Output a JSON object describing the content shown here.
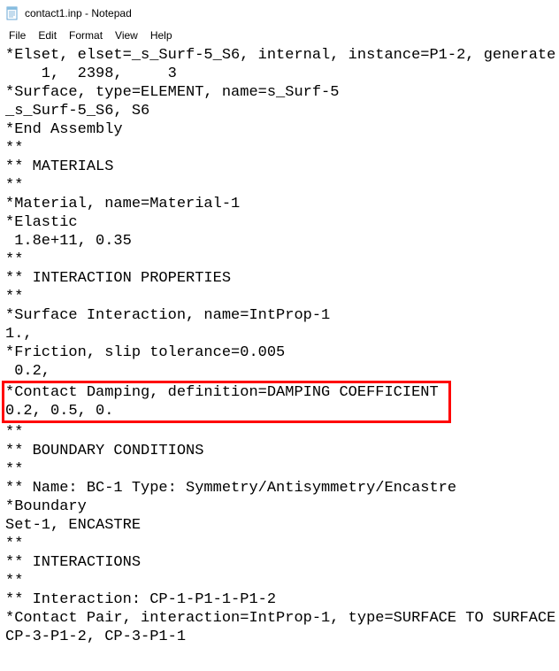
{
  "window": {
    "title": "contact1.inp - Notepad"
  },
  "menubar": {
    "items": [
      {
        "label": "File"
      },
      {
        "label": "Edit"
      },
      {
        "label": "Format"
      },
      {
        "label": "View"
      },
      {
        "label": "Help"
      }
    ]
  },
  "highlight": {
    "border_color": "#ff0000",
    "start_line_index": 18,
    "end_line_index": 19
  },
  "lines": [
    "*Elset, elset=_s_Surf-5_S6, internal, instance=P1-2, generate",
    "    1,  2398,     3",
    "*Surface, type=ELEMENT, name=s_Surf-5",
    "_s_Surf-5_S6, S6",
    "*End Assembly",
    "**",
    "** MATERIALS",
    "**",
    "*Material, name=Material-1",
    "*Elastic",
    " 1.8e+11, 0.35",
    "**",
    "** INTERACTION PROPERTIES",
    "**",
    "*Surface Interaction, name=IntProp-1",
    "1.,",
    "*Friction, slip tolerance=0.005",
    " 0.2,",
    "*Contact Damping, definition=DAMPING COEFFICIENT",
    "0.2, 0.5, 0.",
    "**",
    "** BOUNDARY CONDITIONS",
    "**",
    "** Name: BC-1 Type: Symmetry/Antisymmetry/Encastre",
    "*Boundary",
    "Set-1, ENCASTRE",
    "**",
    "** INTERACTIONS",
    "**",
    "** Interaction: CP-1-P1-1-P1-2",
    "*Contact Pair, interaction=IntProp-1, type=SURFACE TO SURFACE",
    "CP-3-P1-2, CP-3-P1-1"
  ]
}
